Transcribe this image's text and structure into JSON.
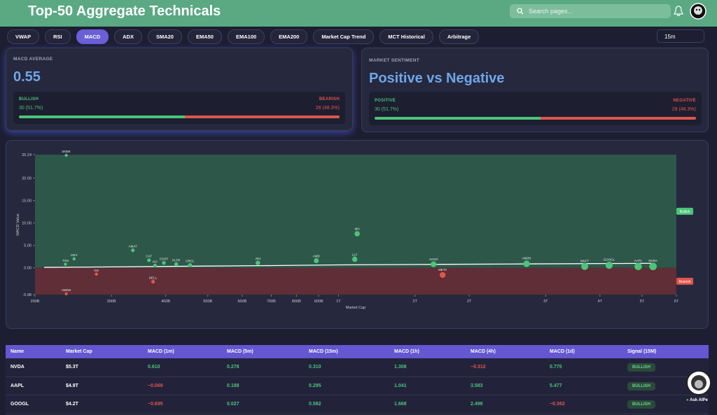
{
  "header": {
    "title": "Top-50 Aggregate Technicals",
    "search_placeholder": "Search pages..."
  },
  "tabs": {
    "items": [
      "VWAP",
      "RSI",
      "MACD",
      "ADX",
      "SMA20",
      "EMA50",
      "EMA100",
      "EMA200",
      "Market Cap Trend",
      "MCT Historical",
      "Arbitrage"
    ],
    "active": 2,
    "interval": "15m"
  },
  "macd_card": {
    "title": "MACD AVERAGE",
    "value": "0.55",
    "bullish": {
      "name": "BULLISH",
      "label": "30 (51.7%)",
      "share": 51.7
    },
    "bearish": {
      "name": "BEARISH",
      "label": "28 (48.3%)",
      "share": 48.3
    }
  },
  "sentiment_card": {
    "title": "MARKET SENTIMENT",
    "headline": "Positive vs Negative",
    "positive": {
      "name": "POSITIVE",
      "label": "30 (51.7%)",
      "share": 51.7
    },
    "negative": {
      "name": "NEGATIVE",
      "label": "28 (48.3%)",
      "share": 48.3
    }
  },
  "chart_data": {
    "type": "scatter",
    "x_label": "Market Cap",
    "y_label": "MACD Value",
    "xlog": true,
    "xlim": [
      200,
      6000
    ],
    "xticks": [
      {
        "value": 200,
        "label": "200B"
      },
      {
        "value": 300,
        "label": "300B"
      },
      {
        "value": 400,
        "label": "400B"
      },
      {
        "value": 500,
        "label": "500B"
      },
      {
        "value": 600,
        "label": "600B"
      },
      {
        "value": 700,
        "label": "700B"
      },
      {
        "value": 800,
        "label": "800B"
      },
      {
        "value": 900,
        "label": "900B"
      },
      {
        "value": 1000,
        "label": "1T"
      },
      {
        "value": 1500,
        "label": "2T"
      },
      {
        "value": 2000,
        "label": "2T"
      },
      {
        "value": 3000,
        "label": "3T"
      },
      {
        "value": 4000,
        "label": "4T"
      },
      {
        "value": 5000,
        "label": "5T"
      },
      {
        "value": 6000,
        "label": "6T"
      }
    ],
    "ylim": [
      -5.98,
      25.24
    ],
    "yticks": [
      {
        "value": -5.98,
        "label": "-5.98"
      },
      {
        "value": 0,
        "label": "0.00"
      },
      {
        "value": 5,
        "label": "5.00"
      },
      {
        "value": 10,
        "label": "10.00"
      },
      {
        "value": 15,
        "label": "15.00"
      },
      {
        "value": 20,
        "label": "20.00"
      },
      {
        "value": 25.24,
        "label": "25.24"
      }
    ],
    "zones": {
      "bullish": "Bullish",
      "bearish": "Bearish"
    },
    "colors": {
      "positive": "#4cc47a",
      "negative": "#e0554d",
      "trend": "#ffffff"
    },
    "points": {
      "labels": [
        "SNDK",
        "GEV",
        "TXN",
        "AMGN",
        "GS",
        "AMAT",
        "CAT",
        "DELL",
        "KO",
        "COST",
        "PLTR",
        "ORCL",
        "JNJ",
        "AMD",
        "LLY",
        "MU",
        "AVGO",
        "META",
        "AMZN",
        "MSFT",
        "GOOGL",
        "AAPL",
        "NVDA"
      ],
      "x": [
        236,
        246,
        235,
        236,
        277,
        336,
        366,
        374,
        378,
        396,
        423,
        455,
        652,
        889,
        1090,
        1104,
        1655,
        1737,
        2711,
        3690,
        4200,
        4900,
        5300
      ],
      "y": [
        25.1,
        2.0,
        0.8,
        -5.8,
        -1.4,
        3.9,
        1.7,
        -3.1,
        0.5,
        1.1,
        0.8,
        0.6,
        1.1,
        1.6,
        1.9,
        7.6,
        0.8,
        -1.6,
        0.9,
        0.3,
        0.582,
        0.295,
        0.31
      ]
    },
    "trend": {
      "x": [
        210,
        300,
        450,
        700,
        1000,
        1500,
        2500,
        4000,
        5300
      ],
      "y": [
        0.1,
        0.2,
        0.35,
        0.5,
        0.65,
        0.75,
        0.85,
        0.95,
        1.0
      ]
    }
  },
  "table": {
    "columns": [
      "Name",
      "Market Cap",
      "MACD (1m)",
      "MACD (5m)",
      "MACD (15m)",
      "MACD (1h)",
      "MACD (4h)",
      "MACD (1d)",
      "Signal (15M)"
    ],
    "rows": [
      [
        "NVDA",
        "$5.3T",
        "0.610",
        "0.278",
        "0.310",
        "1.308",
        "−0.312",
        "0.775",
        "BULLISH"
      ],
      [
        "AAPL",
        "$4.9T",
        "−0.069",
        "0.188",
        "0.295",
        "1.041",
        "3.583",
        "5.477",
        "BULLISH"
      ],
      [
        "GOOGL",
        "$4.2T",
        "−0.695",
        "0.027",
        "0.582",
        "1.668",
        "2.498",
        "−0.362",
        "BULLISH"
      ]
    ]
  },
  "assistant": {
    "label": "Ask AIPe"
  }
}
